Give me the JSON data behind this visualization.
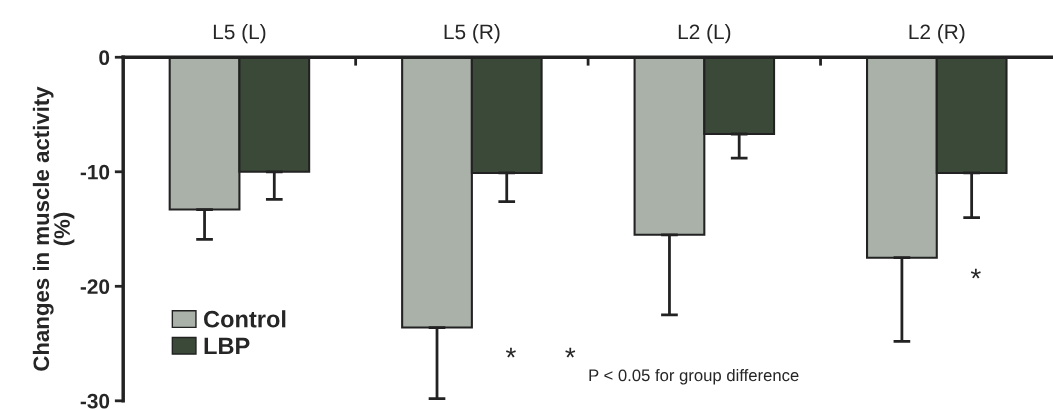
{
  "chart_data": {
    "type": "bar",
    "ylabel": "Changes in muscle activity\n(%)",
    "categories": [
      "L5 (L)",
      "L5 (R)",
      "L2 (L)",
      "L2 (R)"
    ],
    "series": [
      {
        "name": "Control",
        "color": "#a9b1a8",
        "values": [
          -13.3,
          -23.6,
          -15.5,
          -17.5
        ],
        "errors": [
          [
            -15.9,
            -13.3
          ],
          [
            -29.8,
            -23.6
          ],
          [
            -22.5,
            -15.5
          ],
          [
            -24.8,
            -17.5
          ]
        ]
      },
      {
        "name": "LBP",
        "color": "#3b4a38",
        "values": [
          -10.0,
          -10.1,
          -6.7,
          -10.1
        ],
        "errors": [
          [
            -12.4,
            -10.0
          ],
          [
            -12.6,
            -10.1
          ],
          [
            -8.8,
            -6.7
          ],
          [
            -14.0,
            -10.1
          ]
        ]
      }
    ],
    "ylim": [
      -30,
      0
    ],
    "yticks": [
      -30,
      -20,
      -10,
      0
    ],
    "grid": false,
    "legend": "bottom left",
    "annotations": [
      "*",
      "*",
      "* P < 0.05 for group difference"
    ]
  }
}
